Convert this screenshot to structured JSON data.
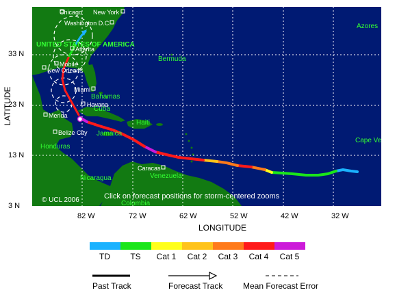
{
  "map": {
    "cities": [
      {
        "name": "Chicago"
      },
      {
        "name": "New York"
      },
      {
        "name": "Washington D.C."
      },
      {
        "name": "Atlanta"
      },
      {
        "name": "Mobile"
      },
      {
        "name": "New Orleans"
      },
      {
        "name": "Miami"
      },
      {
        "name": "Havana"
      },
      {
        "name": "Merida"
      },
      {
        "name": "Belize City"
      },
      {
        "name": "Caracas"
      }
    ],
    "regions": [
      {
        "name": "UNITED STATES OF AMERICA"
      },
      {
        "name": "Bermuda"
      },
      {
        "name": "Azores"
      },
      {
        "name": "Bahamas"
      },
      {
        "name": "Cuba"
      },
      {
        "name": "Haiti"
      },
      {
        "name": "Jamaica"
      },
      {
        "name": "Honduras"
      },
      {
        "name": "Nicaragua"
      },
      {
        "name": "Venezuela"
      },
      {
        "name": "Colombia"
      },
      {
        "name": "Cape Verde"
      }
    ],
    "credit": "© UCL 2006",
    "instruction": "Click on forecast positions for storm-centered zooms",
    "colors": {
      "ocean": "#001a73",
      "land": "#127a12",
      "grid": "#ffffff",
      "label": "#33ff33"
    }
  },
  "axes": {
    "lat_title": "LATITUDE",
    "lon_title": "LONGITUDE",
    "lat_ticks": [
      "33 N",
      "23 N",
      "13 N",
      "3 N"
    ],
    "lon_ticks": [
      "82 W",
      "72 W",
      "62 W",
      "52 W",
      "42 W",
      "32 W"
    ]
  },
  "scale": {
    "colors": [
      "#1ab2ff",
      "#1ae61a",
      "#ffff1a",
      "#ffc31a",
      "#ff7a1a",
      "#ff1a1a",
      "#cc1ad9"
    ],
    "labels": [
      "TD",
      "TS",
      "Cat 1",
      "Cat 2",
      "Cat 3",
      "Cat 4",
      "Cat 5"
    ]
  },
  "legend": {
    "past_track": "Past Track",
    "forecast_track": "Forecast Track",
    "mean_error": "Mean Forecast Error"
  }
}
